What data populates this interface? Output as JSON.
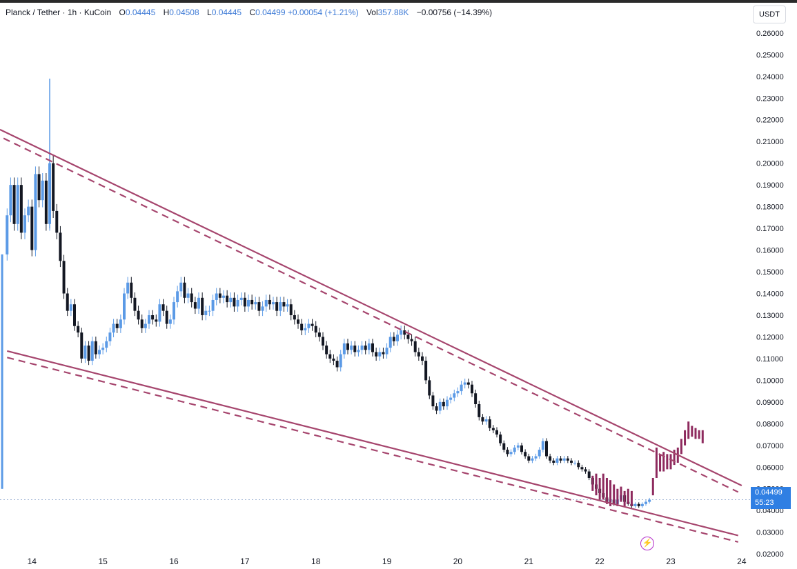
{
  "header": {
    "symbol": "Planck / Tether · 1h · KuCoin",
    "open_label": "O",
    "open": "0.04445",
    "high_label": "H",
    "high": "0.04508",
    "low_label": "L",
    "low": "0.04445",
    "close_label": "C",
    "close": "0.04499",
    "change": "+0.00054 (+1.21%)",
    "vol_label": "Vol",
    "vol": "357.88K",
    "period_change": "−0.00756 (−14.39%)"
  },
  "currency": "USDT",
  "price_label": {
    "price": "0.04499",
    "countdown": "55:23"
  },
  "colors": {
    "up": "#5b9ae6",
    "down": "#131722",
    "trendline": "#a6466e",
    "projection": "#8e2a5e",
    "price": "#2f7fe3"
  },
  "chart_data": {
    "type": "candlestick",
    "title": "Planck / Tether · 1h · KuCoin",
    "ylim": [
      0.0175,
      0.2625
    ],
    "xlim": [
      13.55,
      24.05
    ],
    "y_ticks": [
      "0.02000",
      "0.03000",
      "0.04000",
      "0.05000",
      "0.06000",
      "0.07000",
      "0.08000",
      "0.09000",
      "0.10000",
      "0.11000",
      "0.12000",
      "0.13000",
      "0.14000",
      "0.15000",
      "0.16000",
      "0.17000",
      "0.18000",
      "0.19000",
      "0.20000",
      "0.21000",
      "0.22000",
      "0.23000",
      "0.24000",
      "0.25000",
      "0.26000"
    ],
    "x_ticks": [
      "14",
      "15",
      "16",
      "17",
      "18",
      "19",
      "20",
      "21",
      "22",
      "23",
      "24"
    ],
    "price_path": [
      [
        13.6,
        0.158
      ],
      [
        13.65,
        0.176
      ],
      [
        13.7,
        0.19
      ],
      [
        13.75,
        0.172
      ],
      [
        13.8,
        0.19
      ],
      [
        13.85,
        0.168
      ],
      [
        13.9,
        0.176
      ],
      [
        13.95,
        0.18
      ],
      [
        14.0,
        0.16
      ],
      [
        14.05,
        0.195
      ],
      [
        14.1,
        0.183
      ],
      [
        14.15,
        0.192
      ],
      [
        14.2,
        0.172
      ],
      [
        14.25,
        0.2
      ],
      [
        14.3,
        0.178
      ],
      [
        14.35,
        0.168
      ],
      [
        14.4,
        0.155
      ],
      [
        14.45,
        0.14
      ],
      [
        14.5,
        0.132
      ],
      [
        14.55,
        0.135
      ],
      [
        14.6,
        0.125
      ],
      [
        14.65,
        0.122
      ],
      [
        14.7,
        0.11
      ],
      [
        14.75,
        0.116
      ],
      [
        14.8,
        0.109
      ],
      [
        14.85,
        0.118
      ],
      [
        14.9,
        0.112
      ],
      [
        14.95,
        0.114
      ],
      [
        15.0,
        0.115
      ],
      [
        15.05,
        0.118
      ],
      [
        15.1,
        0.122
      ],
      [
        15.15,
        0.126
      ],
      [
        15.2,
        0.124
      ],
      [
        15.25,
        0.128
      ],
      [
        15.3,
        0.14
      ],
      [
        15.35,
        0.145
      ],
      [
        15.4,
        0.138
      ],
      [
        15.45,
        0.132
      ],
      [
        15.5,
        0.128
      ],
      [
        15.55,
        0.124
      ],
      [
        15.6,
        0.126
      ],
      [
        15.65,
        0.13
      ],
      [
        15.7,
        0.128
      ],
      [
        15.75,
        0.127
      ],
      [
        15.8,
        0.135
      ],
      [
        15.85,
        0.132
      ],
      [
        15.9,
        0.126
      ],
      [
        15.95,
        0.128
      ],
      [
        16.0,
        0.136
      ],
      [
        16.05,
        0.141
      ],
      [
        16.1,
        0.145
      ],
      [
        16.15,
        0.138
      ],
      [
        16.2,
        0.14
      ],
      [
        16.25,
        0.136
      ],
      [
        16.3,
        0.133
      ],
      [
        16.35,
        0.138
      ],
      [
        16.4,
        0.13
      ],
      [
        16.45,
        0.132
      ],
      [
        16.5,
        0.132
      ],
      [
        16.55,
        0.137
      ],
      [
        16.6,
        0.14
      ],
      [
        16.65,
        0.138
      ],
      [
        16.7,
        0.139
      ],
      [
        16.75,
        0.136
      ],
      [
        16.8,
        0.138
      ],
      [
        16.85,
        0.134
      ],
      [
        16.9,
        0.137
      ],
      [
        16.95,
        0.138
      ],
      [
        17.0,
        0.134
      ],
      [
        17.05,
        0.137
      ],
      [
        17.1,
        0.135
      ],
      [
        17.15,
        0.136
      ],
      [
        17.2,
        0.132
      ],
      [
        17.25,
        0.134
      ],
      [
        17.3,
        0.137
      ],
      [
        17.35,
        0.135
      ],
      [
        17.4,
        0.136
      ],
      [
        17.45,
        0.132
      ],
      [
        17.5,
        0.136
      ],
      [
        17.55,
        0.134
      ],
      [
        17.6,
        0.135
      ],
      [
        17.65,
        0.13
      ],
      [
        17.7,
        0.128
      ],
      [
        17.75,
        0.126
      ],
      [
        17.8,
        0.123
      ],
      [
        17.85,
        0.124
      ],
      [
        17.9,
        0.126
      ],
      [
        17.95,
        0.125
      ],
      [
        18.0,
        0.122
      ],
      [
        18.05,
        0.12
      ],
      [
        18.1,
        0.116
      ],
      [
        18.15,
        0.112
      ],
      [
        18.2,
        0.11
      ],
      [
        18.25,
        0.109
      ],
      [
        18.3,
        0.106
      ],
      [
        18.35,
        0.112
      ],
      [
        18.4,
        0.117
      ],
      [
        18.45,
        0.114
      ],
      [
        18.5,
        0.116
      ],
      [
        18.55,
        0.113
      ],
      [
        18.6,
        0.114
      ],
      [
        18.65,
        0.116
      ],
      [
        18.7,
        0.114
      ],
      [
        18.75,
        0.117
      ],
      [
        18.8,
        0.113
      ],
      [
        18.85,
        0.111
      ],
      [
        18.9,
        0.113
      ],
      [
        18.95,
        0.112
      ],
      [
        19.0,
        0.115
      ],
      [
        19.05,
        0.12
      ],
      [
        19.1,
        0.118
      ],
      [
        19.15,
        0.121
      ],
      [
        19.2,
        0.123
      ],
      [
        19.25,
        0.121
      ],
      [
        19.3,
        0.119
      ],
      [
        19.35,
        0.118
      ],
      [
        19.4,
        0.113
      ],
      [
        19.45,
        0.111
      ],
      [
        19.5,
        0.109
      ],
      [
        19.55,
        0.1
      ],
      [
        19.6,
        0.093
      ],
      [
        19.65,
        0.088
      ],
      [
        19.7,
        0.086
      ],
      [
        19.75,
        0.09
      ],
      [
        19.8,
        0.088
      ],
      [
        19.85,
        0.091
      ],
      [
        19.9,
        0.092
      ],
      [
        19.95,
        0.094
      ],
      [
        20.0,
        0.095
      ],
      [
        20.05,
        0.098
      ],
      [
        20.1,
        0.099
      ],
      [
        20.15,
        0.098
      ],
      [
        20.2,
        0.094
      ],
      [
        20.25,
        0.089
      ],
      [
        20.3,
        0.083
      ],
      [
        20.35,
        0.081
      ],
      [
        20.4,
        0.082
      ],
      [
        20.45,
        0.078
      ],
      [
        20.5,
        0.077
      ],
      [
        20.55,
        0.075
      ],
      [
        20.6,
        0.071
      ],
      [
        20.65,
        0.068
      ],
      [
        20.7,
        0.066
      ],
      [
        20.75,
        0.067
      ],
      [
        20.8,
        0.069
      ],
      [
        20.85,
        0.07
      ],
      [
        20.9,
        0.067
      ],
      [
        20.95,
        0.065
      ],
      [
        21.0,
        0.063
      ],
      [
        21.05,
        0.064
      ],
      [
        21.1,
        0.065
      ],
      [
        21.15,
        0.068
      ],
      [
        21.2,
        0.072
      ],
      [
        21.25,
        0.065
      ],
      [
        21.3,
        0.063
      ],
      [
        21.35,
        0.062
      ],
      [
        21.4,
        0.064
      ],
      [
        21.45,
        0.063
      ],
      [
        21.5,
        0.064
      ],
      [
        21.55,
        0.063
      ],
      [
        21.6,
        0.062
      ],
      [
        21.65,
        0.062
      ],
      [
        21.7,
        0.06
      ],
      [
        21.75,
        0.059
      ],
      [
        21.8,
        0.058
      ],
      [
        21.85,
        0.055
      ],
      [
        21.9,
        0.052
      ],
      [
        21.95,
        0.05
      ],
      [
        22.0,
        0.048
      ],
      [
        22.05,
        0.046
      ],
      [
        22.1,
        0.044
      ],
      [
        22.15,
        0.045
      ],
      [
        22.2,
        0.043
      ],
      [
        22.25,
        0.045
      ],
      [
        22.3,
        0.047
      ],
      [
        22.35,
        0.044
      ],
      [
        22.4,
        0.043
      ],
      [
        22.45,
        0.042
      ],
      [
        22.5,
        0.043
      ],
      [
        22.55,
        0.042
      ],
      [
        22.6,
        0.043
      ],
      [
        22.65,
        0.044
      ],
      [
        22.7,
        0.045
      ]
    ],
    "spike_candles": [
      {
        "x": 13.58,
        "open": 0.05,
        "high": 0.158,
        "low": 0.05,
        "close": 0.158
      },
      {
        "x": 14.25,
        "open": 0.178,
        "high": 0.239,
        "low": 0.17,
        "close": 0.198
      }
    ],
    "projection": [
      [
        21.9,
        0.049,
        0.056
      ],
      [
        21.95,
        0.047,
        0.057
      ],
      [
        22.0,
        0.045,
        0.055
      ],
      [
        22.05,
        0.045,
        0.057
      ],
      [
        22.1,
        0.043,
        0.055
      ],
      [
        22.15,
        0.042,
        0.054
      ],
      [
        22.2,
        0.043,
        0.052
      ],
      [
        22.25,
        0.042,
        0.05
      ],
      [
        22.3,
        0.044,
        0.051
      ],
      [
        22.35,
        0.042,
        0.049
      ],
      [
        22.4,
        0.043,
        0.05
      ],
      [
        22.45,
        0.042,
        0.049
      ],
      [
        22.75,
        0.047,
        0.055
      ],
      [
        22.8,
        0.055,
        0.069
      ],
      [
        22.85,
        0.058,
        0.066
      ],
      [
        22.9,
        0.058,
        0.067
      ],
      [
        22.95,
        0.059,
        0.066
      ],
      [
        23.0,
        0.059,
        0.066
      ],
      [
        23.05,
        0.061,
        0.068
      ],
      [
        23.1,
        0.062,
        0.069
      ],
      [
        23.15,
        0.066,
        0.073
      ],
      [
        23.2,
        0.07,
        0.077
      ],
      [
        23.25,
        0.073,
        0.081
      ],
      [
        23.3,
        0.074,
        0.079
      ],
      [
        23.35,
        0.073,
        0.078
      ],
      [
        23.4,
        0.073,
        0.077
      ],
      [
        23.45,
        0.071,
        0.077
      ]
    ],
    "trendlines": [
      {
        "name": "upper",
        "style": "solid",
        "from": [
          13.55,
          0.2155
        ],
        "to": [
          24.0,
          0.0515
        ]
      },
      {
        "name": "upper",
        "style": "dashed",
        "from": [
          13.6,
          0.2115
        ],
        "to": [
          23.95,
          0.0485
        ]
      },
      {
        "name": "lower",
        "style": "solid",
        "from": [
          13.65,
          0.1135
        ],
        "to": [
          23.95,
          0.0285
        ]
      },
      {
        "name": "lower",
        "style": "dashed",
        "from": [
          13.65,
          0.1105
        ],
        "to": [
          23.95,
          0.0255
        ]
      }
    ],
    "current_price": 0.04499
  }
}
